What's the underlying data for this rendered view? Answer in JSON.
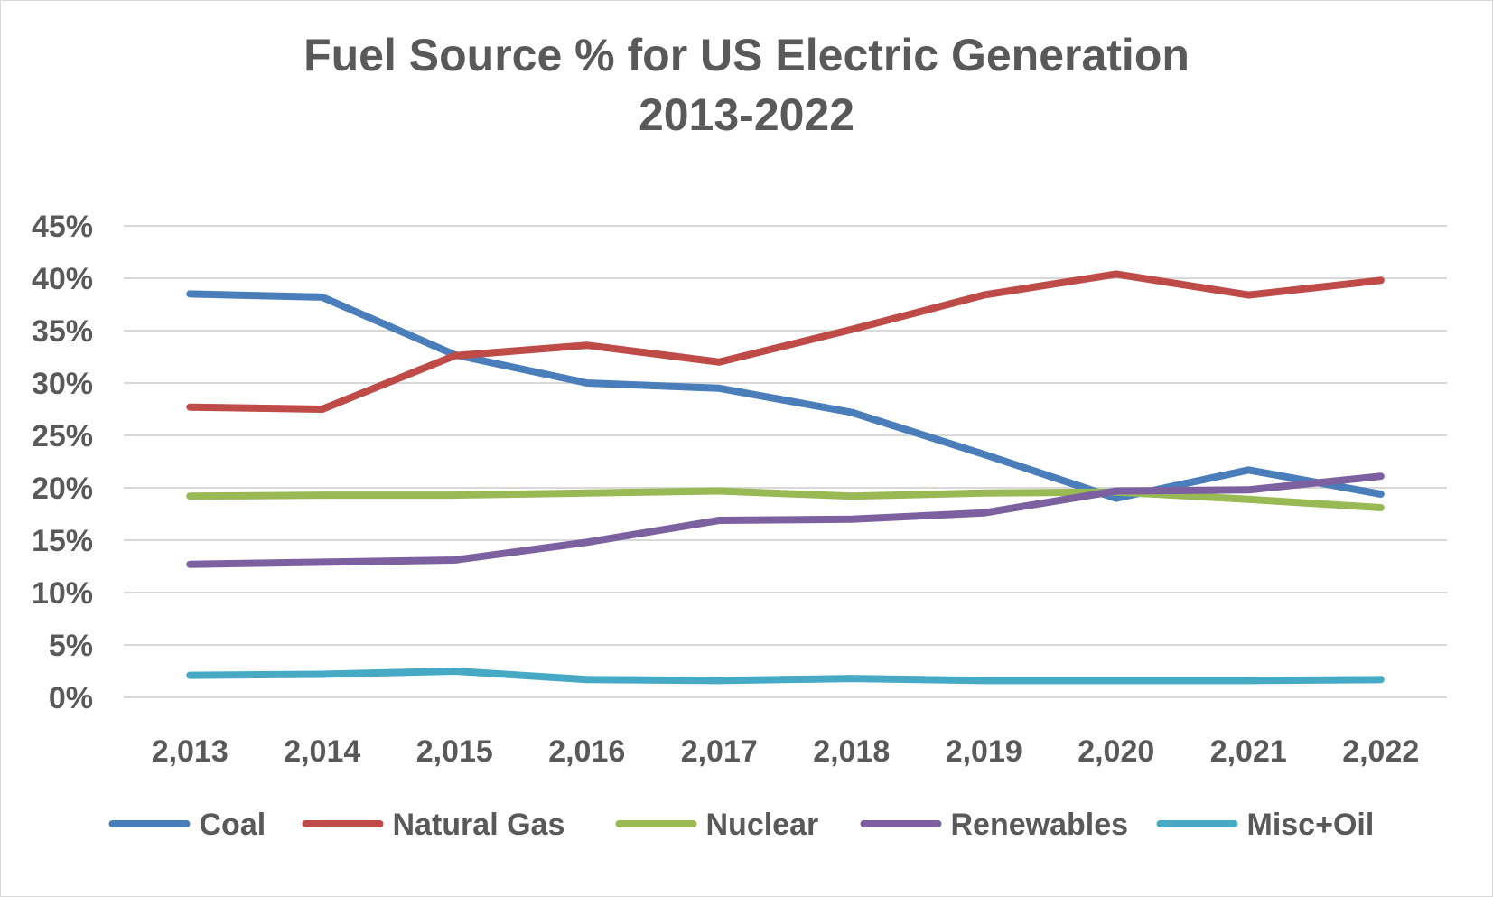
{
  "chart_data": {
    "type": "line",
    "title_line1": "Fuel Source % for US Electric Generation",
    "title_line2": "2013-2022",
    "categories": [
      "2,013",
      "2,014",
      "2,015",
      "2,016",
      "2,017",
      "2,018",
      "2,019",
      "2,020",
      "2,021",
      "2,022"
    ],
    "ylim": [
      0,
      45
    ],
    "yticks": [
      0,
      5,
      10,
      15,
      20,
      25,
      30,
      35,
      40,
      45
    ],
    "ytick_labels": [
      "0%",
      "5%",
      "10%",
      "15%",
      "20%",
      "25%",
      "30%",
      "35%",
      "40%",
      "45%"
    ],
    "grid": true,
    "legend_position": "bottom",
    "series": [
      {
        "name": "Coal",
        "color": "#4a7ebb",
        "values": [
          38.5,
          38.2,
          32.7,
          30.0,
          29.5,
          27.2,
          23.2,
          19.0,
          21.7,
          19.4
        ]
      },
      {
        "name": "Natural Gas",
        "color": "#be4b48",
        "values": [
          27.7,
          27.5,
          32.6,
          33.6,
          32.0,
          35.1,
          38.4,
          40.4,
          38.4,
          39.8
        ]
      },
      {
        "name": "Nuclear",
        "color": "#98b954",
        "values": [
          19.2,
          19.3,
          19.3,
          19.5,
          19.7,
          19.2,
          19.5,
          19.6,
          18.9,
          18.1
        ]
      },
      {
        "name": "Renewables",
        "color": "#7d60a0",
        "values": [
          12.7,
          12.9,
          13.1,
          14.8,
          16.9,
          17.0,
          17.6,
          19.7,
          19.8,
          21.1
        ]
      },
      {
        "name": "Misc+Oil",
        "color": "#46aac5",
        "values": [
          2.1,
          2.2,
          2.5,
          1.7,
          1.6,
          1.8,
          1.6,
          1.6,
          1.6,
          1.7
        ]
      }
    ]
  }
}
